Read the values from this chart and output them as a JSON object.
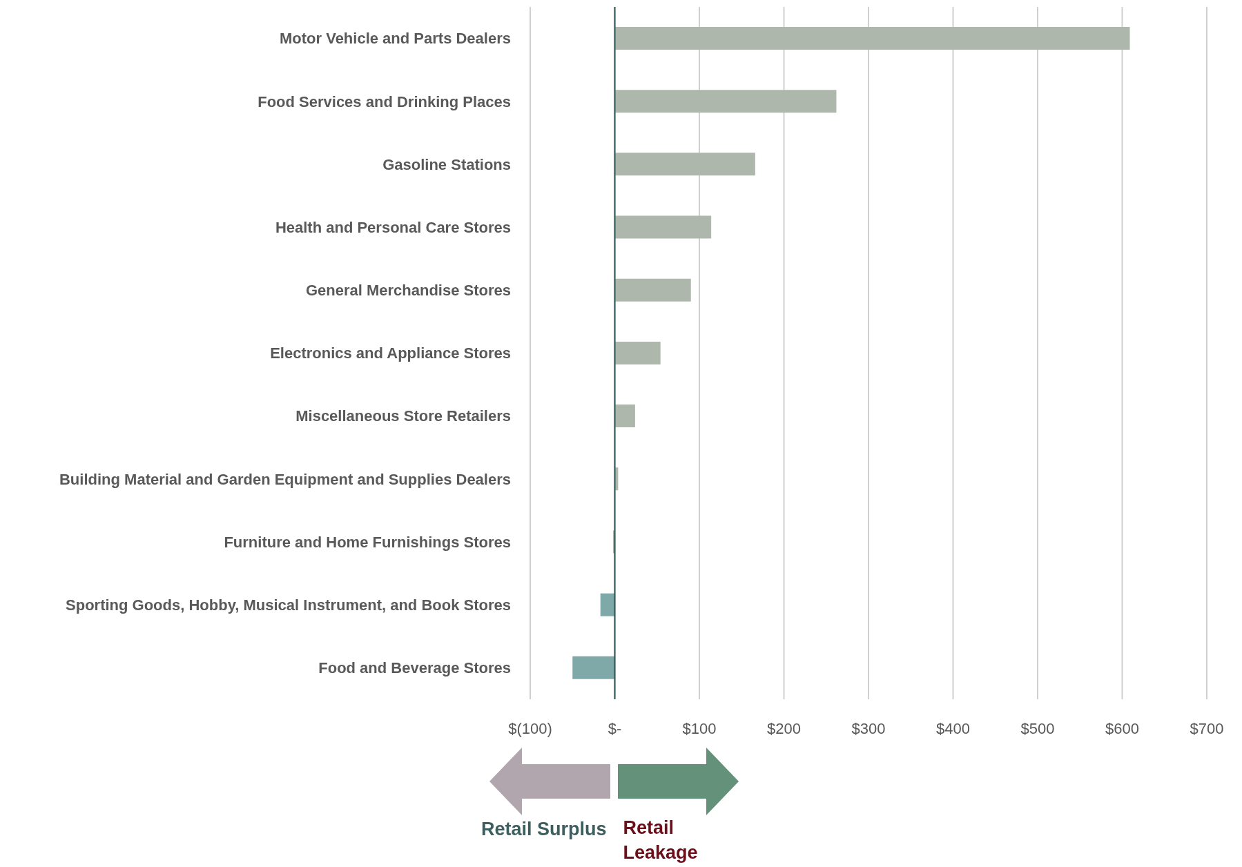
{
  "chart_data": {
    "type": "bar",
    "orientation": "horizontal",
    "categories": [
      "Motor Vehicle and Parts Dealers",
      "Food Services and Drinking Places",
      "Gasoline Stations",
      "Health and Personal Care Stores",
      "General Merchandise Stores",
      "Electronics and Appliance Stores",
      "Miscellaneous Store Retailers",
      "Building Material and Garden Equipment and Supplies Dealers",
      "Furniture and Home Furnishings Stores",
      "Sporting Goods, Hobby, Musical Instrument, and Book Stores",
      "Food and Beverage Stores"
    ],
    "values": [
      609,
      262,
      166,
      114,
      90,
      54,
      24,
      4,
      -2,
      -17,
      -50
    ],
    "colors": [
      "#aeb7ab",
      "#aeb7ab",
      "#aeb7ab",
      "#aeb7ab",
      "#aeb7ab",
      "#aeb7ab",
      "#aeb7ab",
      "#aeb7ab",
      "#aeb7ab",
      "#7fa8a8",
      "#7fa8a8"
    ],
    "xlim": [
      -100,
      700
    ],
    "xticks": [
      {
        "value": -100,
        "label": "$(100)"
      },
      {
        "value": 0,
        "label": "$-"
      },
      {
        "value": 100,
        "label": "$100"
      },
      {
        "value": 200,
        "label": "$200"
      },
      {
        "value": 300,
        "label": "$300"
      },
      {
        "value": 400,
        "label": "$400"
      },
      {
        "value": 500,
        "label": "$500"
      },
      {
        "value": 600,
        "label": "$600"
      },
      {
        "value": 700,
        "label": "$700"
      }
    ],
    "grid": "x",
    "ref_lines": [
      {
        "axis": "x",
        "value": 0,
        "color": "#2f5555"
      }
    ],
    "annotations": [
      "Retail Surplus",
      "Retail Leakage"
    ]
  }
}
